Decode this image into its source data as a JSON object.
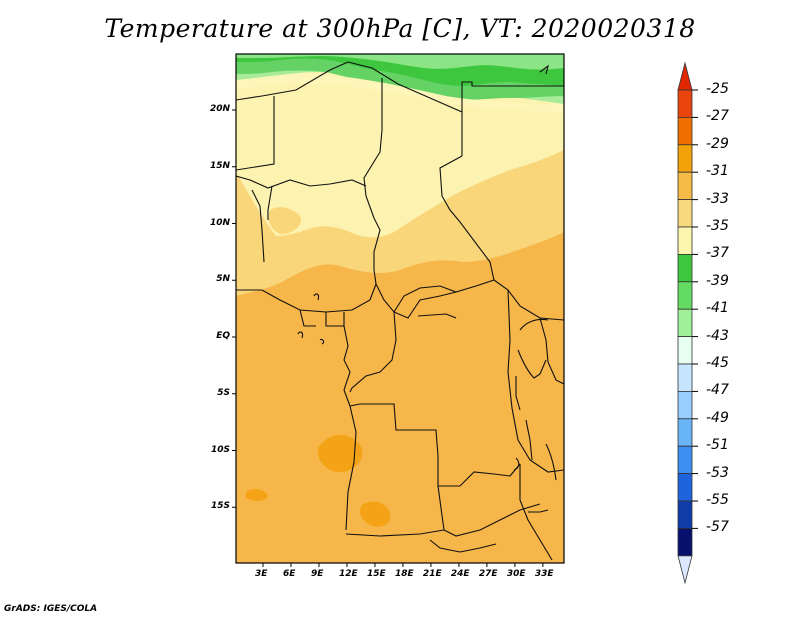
{
  "title": "Temperature at 300hPa [C], VT: 2020020318",
  "footer": "GrADS: IGES/COLA",
  "map": {
    "lat_ticks": [
      {
        "label": "20N",
        "value": 20
      },
      {
        "label": "15N",
        "value": 15
      },
      {
        "label": "10N",
        "value": 10
      },
      {
        "label": "5N",
        "value": 5
      },
      {
        "label": "EQ",
        "value": 0
      },
      {
        "label": "5S",
        "value": -5
      },
      {
        "label": "10S",
        "value": -10
      },
      {
        "label": "15S",
        "value": -15
      }
    ],
    "lon_ticks": [
      {
        "label": "3E",
        "value": 3
      },
      {
        "label": "6E",
        "value": 6
      },
      {
        "label": "9E",
        "value": 9
      },
      {
        "label": "12E",
        "value": 12
      },
      {
        "label": "15E",
        "value": 15
      },
      {
        "label": "18E",
        "value": 18
      },
      {
        "label": "21E",
        "value": 21
      },
      {
        "label": "24E",
        "value": 24
      },
      {
        "label": "27E",
        "value": 27
      },
      {
        "label": "30E",
        "value": 30
      },
      {
        "label": "33E",
        "value": 33
      }
    ]
  },
  "colorbar": {
    "labels": [
      "-25",
      "-27",
      "-29",
      "-31",
      "-33",
      "-35",
      "-37",
      "-39",
      "-41",
      "-43",
      "-45",
      "-47",
      "-49",
      "-51",
      "-53",
      "-55",
      "-57"
    ],
    "colors": [
      "#e8440c",
      "#f06e00",
      "#f4a20a",
      "#f6bb46",
      "#f9d97d",
      "#fdf6af",
      "#3ec63e",
      "#64dc64",
      "#a0f09a",
      "#e6fff0",
      "#c6e6ff",
      "#9ad0ff",
      "#6ab4f8",
      "#3c8ef0",
      "#1e64dc",
      "#0e3ca8",
      "#08106e"
    ],
    "top_color": "#e02800",
    "bottom_color": "#dce8ff"
  }
}
